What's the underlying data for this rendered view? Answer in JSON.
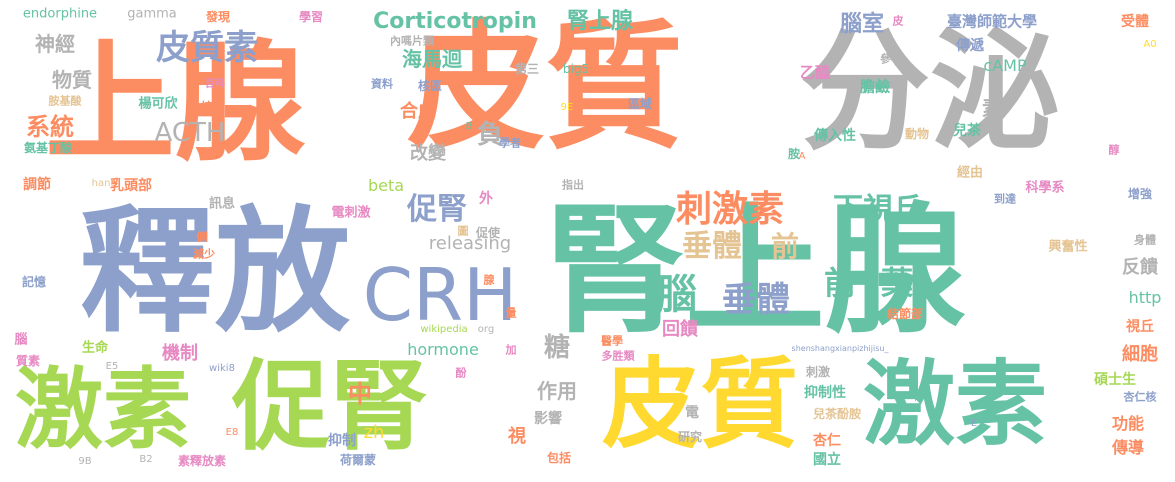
{
  "words": [
    {
      "text": "上腺",
      "color": "orange"
    },
    {
      "text": "皮質",
      "color": "orange"
    },
    {
      "text": "分泌",
      "color": "gray"
    },
    {
      "text": "釋放",
      "color": "blue"
    },
    {
      "text": "腎上腺",
      "color": "green"
    },
    {
      "text": "激素",
      "color": "lime"
    },
    {
      "text": "促腎",
      "color": "lime"
    },
    {
      "text": "皮質",
      "color": "yellow"
    },
    {
      "text": "激素",
      "color": "green"
    },
    {
      "text": "CRH",
      "color": "blue"
    },
    {
      "text": "皮質素",
      "color": "blue"
    },
    {
      "text": "Corticotropin",
      "color": "green"
    },
    {
      "text": "腎上腺",
      "color": "green"
    },
    {
      "text": "刺激素",
      "color": "orange"
    },
    {
      "text": "促腎",
      "color": "blue"
    },
    {
      "text": "下視丘",
      "color": "green"
    },
    {
      "text": "垂體",
      "color": "tan"
    },
    {
      "text": "前",
      "color": "tan"
    },
    {
      "text": "垂體",
      "color": "blue"
    },
    {
      "text": "腦",
      "color": "green"
    },
    {
      "text": "前",
      "color": "green"
    },
    {
      "text": "葉",
      "color": "green"
    },
    {
      "text": "ACTH",
      "color": "gray"
    },
    {
      "text": "系統",
      "color": "orange"
    },
    {
      "text": "神經",
      "color": "gray"
    },
    {
      "text": "物質",
      "color": "gray"
    },
    {
      "text": "海馬迴",
      "color": "green"
    },
    {
      "text": "合成",
      "color": "orange"
    },
    {
      "text": "改變",
      "color": "gray"
    },
    {
      "text": "負",
      "color": "gray"
    },
    {
      "text": "腦室",
      "color": "blue"
    },
    {
      "text": "臺灣師範大學",
      "color": "blue"
    },
    {
      "text": "受體",
      "color": "orange"
    },
    {
      "text": "傳遞",
      "color": "blue"
    },
    {
      "text": "cAMP",
      "color": "green"
    },
    {
      "text": "乙醯",
      "color": "pink"
    },
    {
      "text": "膽鹼",
      "color": "green"
    },
    {
      "text": "素",
      "color": "gray"
    },
    {
      "text": "releasing",
      "color": "gray"
    },
    {
      "text": "beta",
      "color": "lime"
    },
    {
      "text": "hormone",
      "color": "green"
    },
    {
      "text": "http",
      "color": "green"
    },
    {
      "text": "反饋",
      "color": "gray"
    },
    {
      "text": "回饋",
      "color": "pink"
    },
    {
      "text": "機制",
      "color": "pink"
    },
    {
      "text": "細胞",
      "color": "orange"
    },
    {
      "text": "視丘",
      "color": "orange"
    },
    {
      "text": "碩士生",
      "color": "lime"
    },
    {
      "text": "功能",
      "color": "orange"
    },
    {
      "text": "傳導",
      "color": "orange"
    },
    {
      "text": "中",
      "color": "orange"
    },
    {
      "text": "作用",
      "color": "gray"
    },
    {
      "text": "糖",
      "color": "gray"
    },
    {
      "text": "zh",
      "color": "yellow"
    },
    {
      "text": "抑制",
      "color": "blue"
    },
    {
      "text": "荷爾蒙",
      "color": "blue"
    },
    {
      "text": "影響",
      "color": "gray"
    },
    {
      "text": "視",
      "color": "orange"
    },
    {
      "text": "包括",
      "color": "orange"
    },
    {
      "text": "研究",
      "color": "gray"
    },
    {
      "text": "電",
      "color": "gray"
    },
    {
      "text": "杏仁",
      "color": "orange"
    },
    {
      "text": "國立",
      "color": "green"
    },
    {
      "text": "抑制性",
      "color": "green"
    },
    {
      "text": "兒茶",
      "color": "green"
    },
    {
      "text": "動物",
      "color": "tan"
    },
    {
      "text": "傳入性",
      "color": "green"
    },
    {
      "text": "胺",
      "color": "green"
    },
    {
      "text": "經由",
      "color": "tan"
    },
    {
      "text": "科學系",
      "color": "pink"
    },
    {
      "text": "增強",
      "color": "blue"
    },
    {
      "text": "興奮性",
      "color": "tan"
    },
    {
      "text": "結節部",
      "color": "orange"
    },
    {
      "text": "刺激",
      "color": "gray"
    },
    {
      "text": "兒茶酚胺",
      "color": "tan"
    },
    {
      "text": "杏仁核",
      "color": "blue"
    },
    {
      "text": "生命",
      "color": "lime"
    },
    {
      "text": "乳頭部",
      "color": "orange"
    },
    {
      "text": "楊可欣",
      "color": "green"
    },
    {
      "text": "氨基丁酸",
      "color": "green"
    },
    {
      "text": "調節",
      "color": "orange"
    },
    {
      "text": "訊息",
      "color": "gray"
    },
    {
      "text": "電刺激",
      "color": "pink"
    },
    {
      "text": "外",
      "color": "pink"
    },
    {
      "text": "促使",
      "color": "gray"
    },
    {
      "text": "記憶",
      "color": "blue"
    },
    {
      "text": "腦",
      "color": "pink"
    },
    {
      "text": "質素",
      "color": "pink"
    },
    {
      "text": "素釋放素",
      "color": "pink"
    },
    {
      "text": "endorphine",
      "color": "green"
    },
    {
      "text": "gamma",
      "color": "gray"
    },
    {
      "text": "發現",
      "color": "orange"
    },
    {
      "text": "學習",
      "color": "pink"
    },
    {
      "text": "內嗎片類",
      "color": "gray"
    },
    {
      "text": "資料",
      "color": "blue"
    },
    {
      "text": "核區",
      "color": "blue"
    },
    {
      "text": "第三",
      "color": "gray"
    },
    {
      "text": "big5",
      "color": "green"
    },
    {
      "text": "區域",
      "color": "blue"
    },
    {
      "text": "參考",
      "color": "gray"
    },
    {
      "text": "皮",
      "color": "pink"
    },
    {
      "text": "醇",
      "color": "pink"
    },
    {
      "text": "A0",
      "color": "yellow"
    },
    {
      "text": "胺基酸",
      "color": "tan"
    },
    {
      "text": "百科",
      "color": "pink"
    },
    {
      "text": "控制",
      "color": "orange"
    },
    {
      "text": "hant",
      "color": "tan"
    },
    {
      "text": "學者",
      "color": "blue"
    },
    {
      "text": "指出",
      "color": "gray"
    },
    {
      "text": "9E",
      "color": "yellow"
    },
    {
      "text": "B",
      "color": "green"
    },
    {
      "text": "A",
      "color": "orange"
    },
    {
      "text": "到達",
      "color": "blue"
    },
    {
      "text": "身體",
      "color": "gray"
    },
    {
      "text": "側",
      "color": "orange"
    },
    {
      "text": "減少",
      "color": "orange"
    },
    {
      "text": "圖",
      "color": "tan"
    },
    {
      "text": "腺",
      "color": "orange"
    },
    {
      "text": "wikipedia",
      "color": "lime"
    },
    {
      "text": "org",
      "color": "gray"
    },
    {
      "text": "量",
      "color": "orange"
    },
    {
      "text": "shenshangxianpizhijisu_",
      "color": "blue"
    },
    {
      "text": "加",
      "color": "pink"
    },
    {
      "text": "酚",
      "color": "pink"
    },
    {
      "text": "醫學",
      "color": "orange"
    },
    {
      "text": "多胜類",
      "color": "pink"
    },
    {
      "text": "wiki8",
      "color": "blue"
    },
    {
      "text": "E5",
      "color": "gray"
    },
    {
      "text": "E8",
      "color": "orange"
    },
    {
      "text": "B2",
      "color": "gray"
    },
    {
      "text": "9B",
      "color": "gray"
    },
    {
      "text": "E",
      "color": "blue"
    }
  ],
  "palette": {
    "orange": "#fc8d62",
    "blue": "#8da0cb",
    "green": "#66c2a5",
    "gray": "#b3b3b3",
    "yellow": "#ffd92f",
    "lime": "#a6d854",
    "pink": "#e78ac3",
    "tan": "#e5c494"
  }
}
